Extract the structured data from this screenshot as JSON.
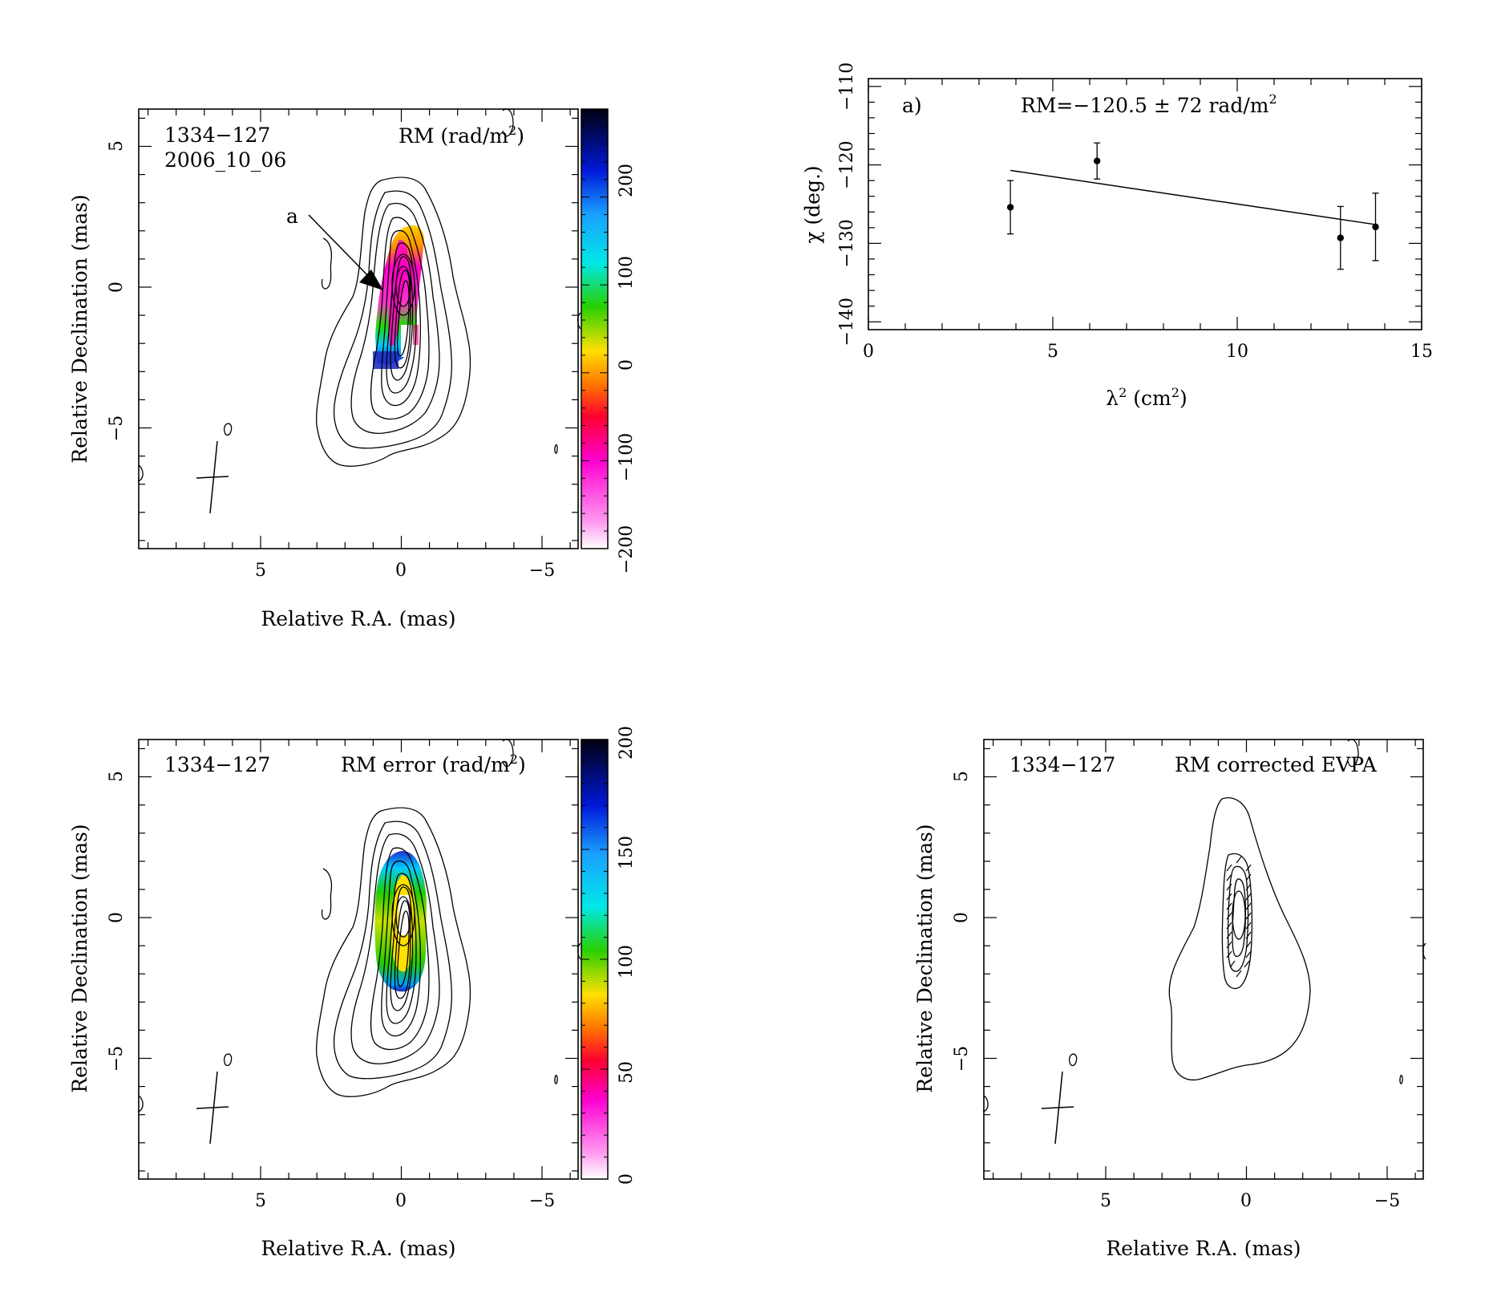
{
  "panels": [
    {
      "id": "rm",
      "source": "1334−127",
      "epoch": "2006_10_06",
      "label_prefix": "RM (rad/m",
      "label_suffix": ")",
      "xlabel": "Relative R.A. (mas)",
      "ylabel": "Relative Declination (mas)",
      "xticks": [
        "5",
        "0",
        "−5"
      ],
      "yticks": [
        "5",
        "0",
        "−5"
      ],
      "region_label": "a",
      "colorbar": {
        "ticks": [
          "−200",
          "−100",
          "0",
          "100",
          "200"
        ],
        "range": [
          -250,
          250
        ]
      }
    },
    {
      "id": "rmerr",
      "source": "1334−127",
      "label_prefix": "RM error (rad/m",
      "label_suffix": ")",
      "xlabel": "Relative R.A. (mas)",
      "ylabel": "Relative Declination (mas)",
      "xticks": [
        "5",
        "0",
        "−5"
      ],
      "yticks": [
        "5",
        "0",
        "−5"
      ],
      "colorbar": {
        "ticks": [
          "0",
          "50",
          "100",
          "150",
          "200"
        ],
        "range": [
          0,
          200
        ]
      }
    },
    {
      "id": "evpa",
      "source": "1334−127",
      "label": "RM corrected EVPA",
      "xlabel": "Relative R.A. (mas)",
      "ylabel": "Relative Declination (mas)",
      "xticks": [
        "5",
        "0",
        "−5"
      ],
      "yticks": [
        "5",
        "0",
        "−5"
      ]
    }
  ],
  "chart_data": {
    "type": "scatter",
    "panel_label": "a)",
    "annotation_prefix": "RM=−120.5 ± 72 rad/m",
    "xlabel_prefix": "λ",
    "xlabel_suffix": " (cm",
    "xlabel_end": ")",
    "ylabel": "χ (deg.)",
    "xlim": [
      0,
      15
    ],
    "ylim": [
      -141,
      -109
    ],
    "xticks": [
      0,
      5,
      10,
      15
    ],
    "yticks": [
      -110,
      -120,
      -130,
      -140
    ],
    "xtick_labels": [
      "0",
      "5",
      "10",
      "15"
    ],
    "ytick_labels": [
      "−110",
      "−120",
      "−130",
      "−140"
    ],
    "points": [
      {
        "x": 3.85,
        "y": -125.4,
        "err": 3.4
      },
      {
        "x": 6.2,
        "y": -119.5,
        "err": 2.3
      },
      {
        "x": 12.8,
        "y": -129.3,
        "err": 4.0
      },
      {
        "x": 13.75,
        "y": -127.9,
        "err": 4.3
      }
    ],
    "fit_line": {
      "x": [
        3.85,
        13.75
      ],
      "y": [
        -120.7,
        -127.6
      ]
    },
    "grid": false
  }
}
